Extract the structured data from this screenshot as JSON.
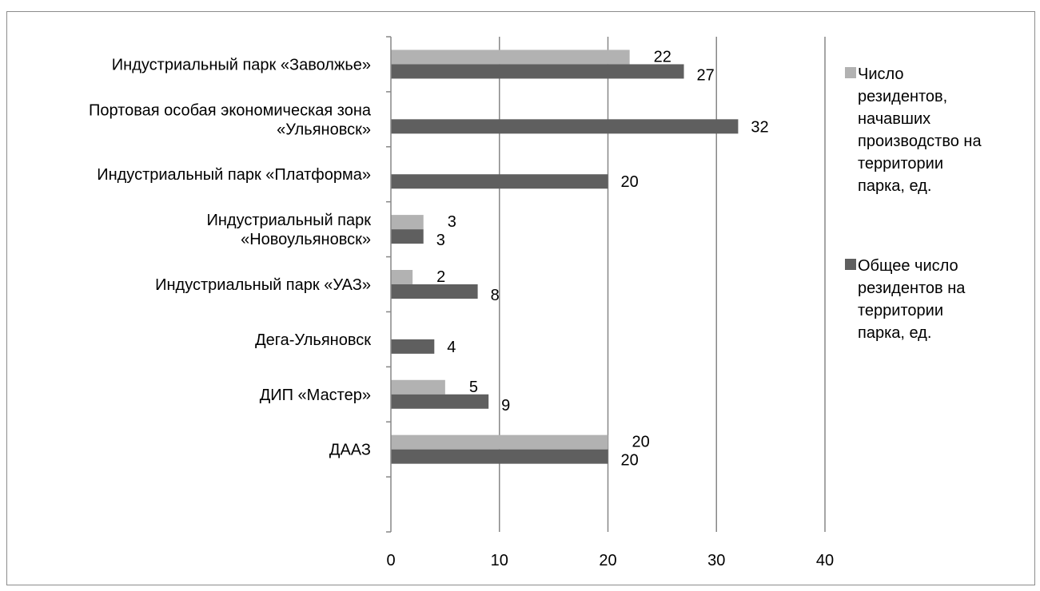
{
  "chart_data": {
    "type": "bar",
    "orientation": "horizontal",
    "title": "",
    "xlabel": "",
    "ylabel": "",
    "categories": [
      [
        "ДААЗ"
      ],
      [
        "ДИП «Мастер»"
      ],
      [
        "Дега-Ульяновск"
      ],
      [
        "Индустриальный парк «УАЗ»"
      ],
      [
        "Индустриальный парк",
        "«Новоульяновск»"
      ],
      [
        "Индустриальный парк «Платформа»"
      ],
      [
        "Портовая особая экономическая зона",
        "«Ульяновск»"
      ],
      [
        "Индустриальный парк «Заволжье»"
      ]
    ],
    "series": [
      {
        "name": [
          "Общее число",
          "резидентов на",
          "территории",
          "парка, ед."
        ],
        "color": "#5f5f5f",
        "values": [
          20,
          9,
          4,
          8,
          3,
          20,
          32,
          27
        ]
      },
      {
        "name": [
          "Число",
          "резидентов,",
          "начавших",
          "производство на",
          "территории",
          "парка, ед."
        ],
        "color": "#b2b2b2",
        "values": [
          20,
          5,
          null,
          2,
          3,
          null,
          null,
          22
        ]
      }
    ],
    "xlim": [
      0,
      40
    ],
    "xticks": [
      "0",
      "10",
      "20",
      "30",
      "40"
    ],
    "grid": "vertical",
    "legend_position": "right",
    "data_labels": true
  }
}
